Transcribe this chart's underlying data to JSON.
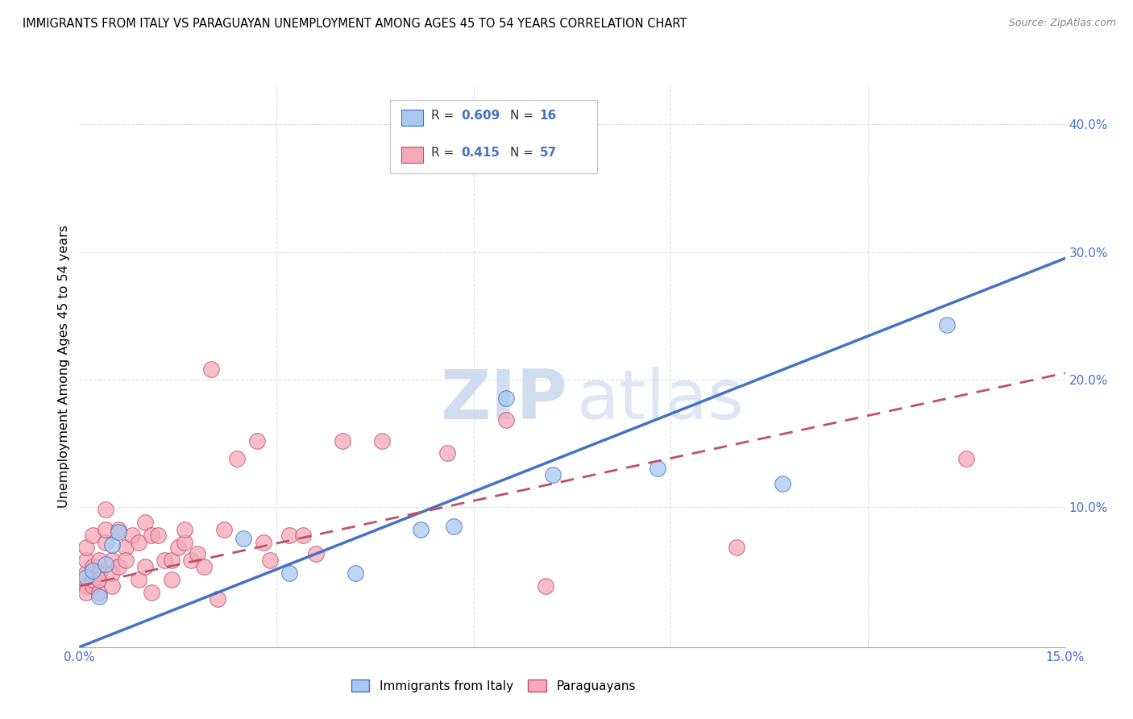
{
  "title": "IMMIGRANTS FROM ITALY VS PARAGUAYAN UNEMPLOYMENT AMONG AGES 45 TO 54 YEARS CORRELATION CHART",
  "source": "Source: ZipAtlas.com",
  "ylabel": "Unemployment Among Ages 45 to 54 years",
  "xlim": [
    0.0,
    0.15
  ],
  "ylim": [
    -0.01,
    0.43
  ],
  "xticks": [
    0.0,
    0.03,
    0.06,
    0.09,
    0.12,
    0.15
  ],
  "yticks": [
    0.0,
    0.1,
    0.2,
    0.3,
    0.4
  ],
  "ytick_labels_right": [
    "",
    "10.0%",
    "20.0%",
    "30.0%",
    "40.0%"
  ],
  "blue_R": 0.609,
  "blue_N": 16,
  "pink_R": 0.415,
  "pink_N": 57,
  "blue_color": "#A8C8F0",
  "pink_color": "#F5A8B8",
  "blue_line_color": "#4472C4",
  "pink_line_color": "#C0506A",
  "legend_label_blue": "Immigrants from Italy",
  "legend_label_pink": "Paraguayans",
  "blue_line_x": [
    0.0,
    0.15
  ],
  "blue_line_y": [
    -0.01,
    0.295
  ],
  "pink_line_x": [
    0.0,
    0.15
  ],
  "pink_line_y": [
    0.038,
    0.205
  ],
  "blue_dots": [
    [
      0.001,
      0.045
    ],
    [
      0.002,
      0.05
    ],
    [
      0.003,
      0.03
    ],
    [
      0.004,
      0.055
    ],
    [
      0.005,
      0.07
    ],
    [
      0.006,
      0.08
    ],
    [
      0.025,
      0.075
    ],
    [
      0.032,
      0.048
    ],
    [
      0.042,
      0.048
    ],
    [
      0.052,
      0.082
    ],
    [
      0.057,
      0.085
    ],
    [
      0.065,
      0.185
    ],
    [
      0.072,
      0.125
    ],
    [
      0.088,
      0.13
    ],
    [
      0.107,
      0.118
    ],
    [
      0.132,
      0.243
    ]
  ],
  "pink_dots": [
    [
      0.001,
      0.038
    ],
    [
      0.001,
      0.048
    ],
    [
      0.001,
      0.058
    ],
    [
      0.001,
      0.033
    ],
    [
      0.001,
      0.068
    ],
    [
      0.002,
      0.078
    ],
    [
      0.002,
      0.038
    ],
    [
      0.002,
      0.053
    ],
    [
      0.002,
      0.043
    ],
    [
      0.003,
      0.058
    ],
    [
      0.003,
      0.048
    ],
    [
      0.003,
      0.033
    ],
    [
      0.003,
      0.043
    ],
    [
      0.004,
      0.072
    ],
    [
      0.004,
      0.098
    ],
    [
      0.004,
      0.082
    ],
    [
      0.005,
      0.058
    ],
    [
      0.005,
      0.048
    ],
    [
      0.005,
      0.038
    ],
    [
      0.006,
      0.053
    ],
    [
      0.006,
      0.082
    ],
    [
      0.007,
      0.068
    ],
    [
      0.007,
      0.058
    ],
    [
      0.008,
      0.078
    ],
    [
      0.009,
      0.043
    ],
    [
      0.009,
      0.072
    ],
    [
      0.01,
      0.088
    ],
    [
      0.01,
      0.053
    ],
    [
      0.011,
      0.078
    ],
    [
      0.011,
      0.033
    ],
    [
      0.012,
      0.078
    ],
    [
      0.013,
      0.058
    ],
    [
      0.014,
      0.058
    ],
    [
      0.014,
      0.043
    ],
    [
      0.015,
      0.068
    ],
    [
      0.016,
      0.072
    ],
    [
      0.016,
      0.082
    ],
    [
      0.017,
      0.058
    ],
    [
      0.018,
      0.063
    ],
    [
      0.019,
      0.053
    ],
    [
      0.02,
      0.208
    ],
    [
      0.021,
      0.028
    ],
    [
      0.022,
      0.082
    ],
    [
      0.024,
      0.138
    ],
    [
      0.027,
      0.152
    ],
    [
      0.028,
      0.072
    ],
    [
      0.029,
      0.058
    ],
    [
      0.032,
      0.078
    ],
    [
      0.034,
      0.078
    ],
    [
      0.036,
      0.063
    ],
    [
      0.04,
      0.152
    ],
    [
      0.046,
      0.152
    ],
    [
      0.056,
      0.142
    ],
    [
      0.065,
      0.168
    ],
    [
      0.071,
      0.038
    ],
    [
      0.1,
      0.068
    ],
    [
      0.135,
      0.138
    ]
  ],
  "background_color": "#FFFFFF",
  "grid_color": "#DDDDDD"
}
